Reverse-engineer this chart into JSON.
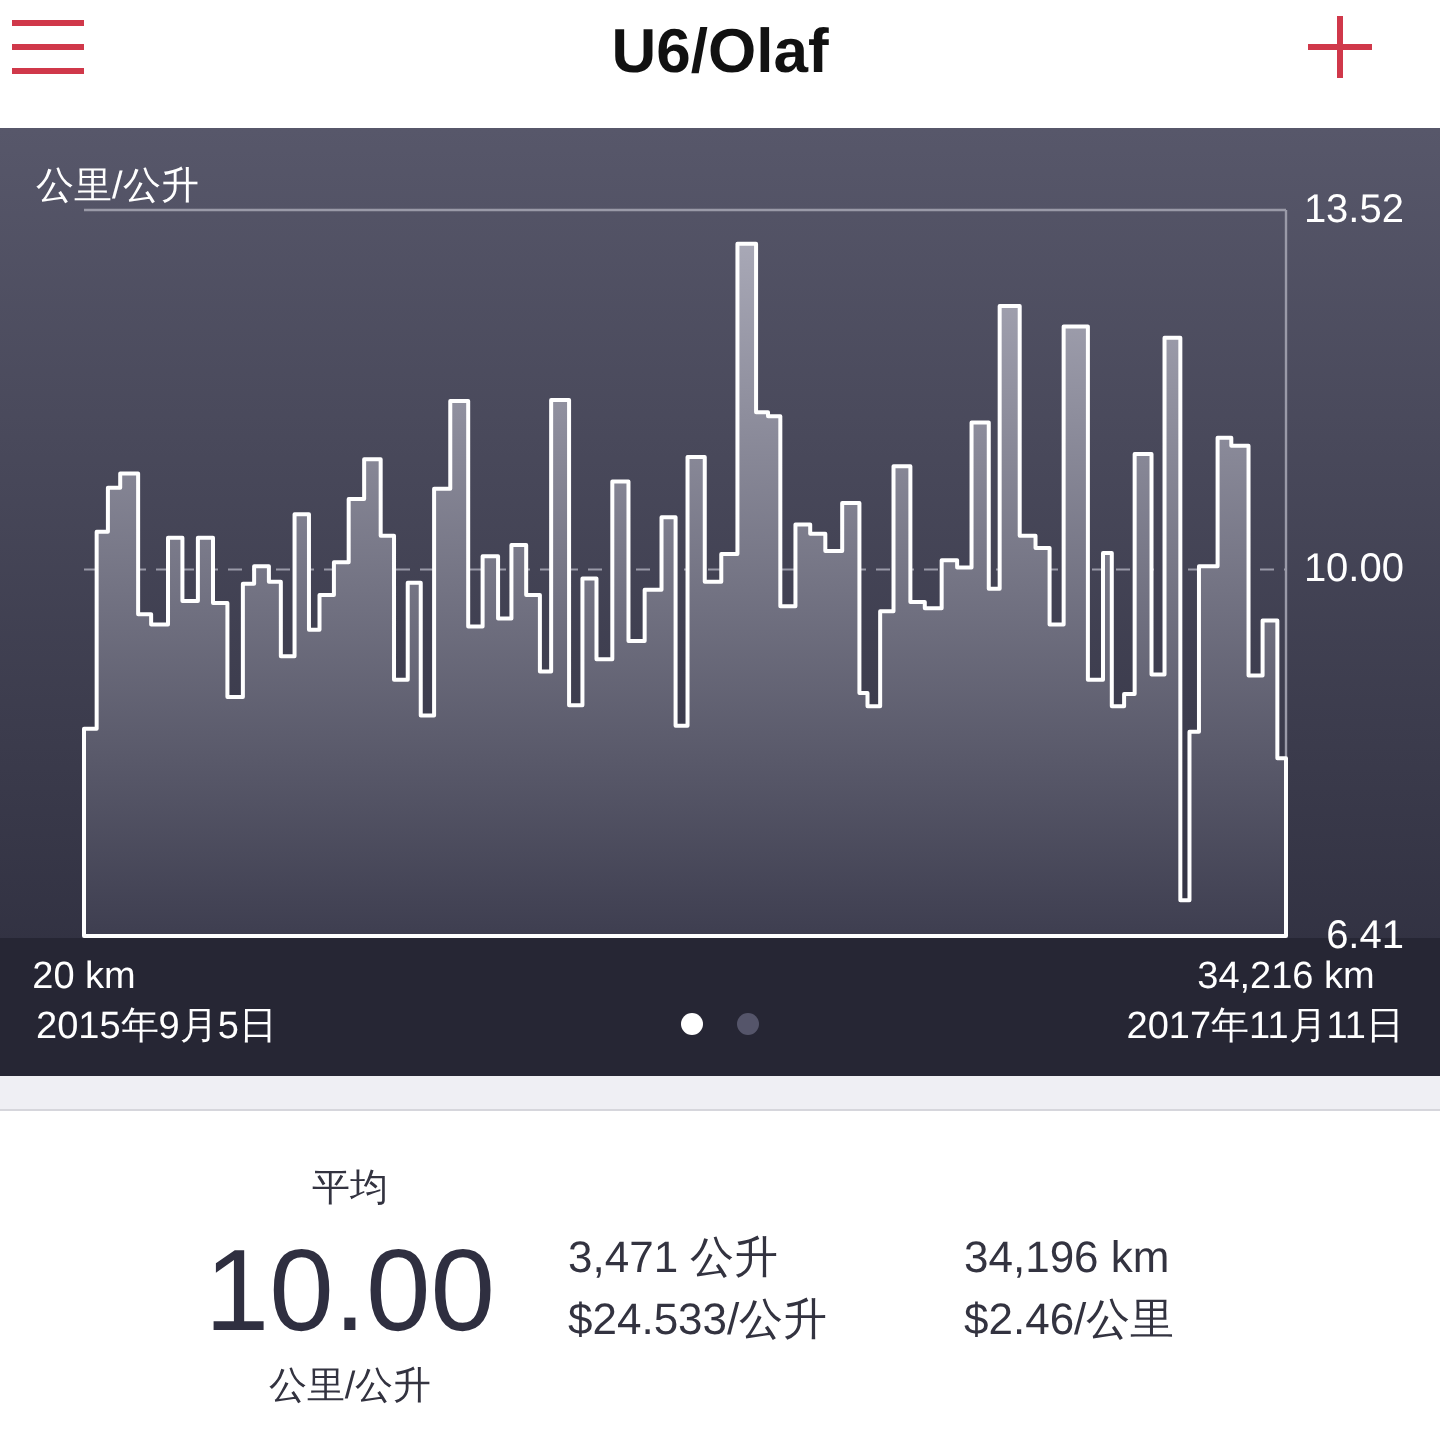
{
  "chart_data": {
    "type": "area",
    "title": "U6/Olaf",
    "ylabel": "公里/公升",
    "color": "#ffffff",
    "x": [
      20,
      380,
      700,
      1050,
      1560,
      1930,
      2410,
      2820,
      3260,
      3690,
      4100,
      4540,
      4860,
      5280,
      5620,
      6010,
      6420,
      6720,
      7130,
      7550,
      7990,
      8460,
      8840,
      9230,
      9600,
      9980,
      10440,
      10950,
      11360,
      11800,
      12180,
      12600,
      12990,
      13310,
      13820,
      14200,
      14600,
      15050,
      15510,
      15970,
      16450,
      16850,
      17190,
      17680,
      18150,
      18610,
      19140,
      19480,
      19830,
      20260,
      20680,
      21110,
      21590,
      22080,
      22310,
      22670,
      23050,
      23530,
      23940,
      24420,
      24860,
      25270,
      25760,
      26070,
      26640,
      27090,
      27490,
      27890,
      28580,
      29010,
      29260,
      29610,
      29910,
      30390,
      30760,
      31210,
      31470,
      31740,
      32270,
      32660,
      33150,
      33550,
      33970,
      34216
    ],
    "values": [
      8.44,
      10.37,
      10.8,
      10.94,
      9.56,
      9.46,
      10.31,
      9.69,
      10.31,
      9.67,
      8.75,
      9.86,
      10.03,
      9.88,
      9.15,
      10.54,
      9.41,
      9.75,
      10.07,
      10.69,
      11.08,
      10.33,
      8.92,
      9.87,
      8.57,
      10.79,
      11.65,
      9.44,
      10.13,
      9.52,
      10.24,
      9.75,
      9.0,
      11.66,
      8.67,
      9.91,
      9.12,
      10.86,
      9.3,
      9.8,
      10.51,
      8.47,
      11.1,
      9.88,
      10.15,
      13.19,
      11.54,
      11.5,
      9.64,
      10.44,
      10.35,
      10.18,
      10.65,
      8.79,
      8.66,
      9.59,
      11.01,
      9.68,
      9.62,
      10.09,
      10.02,
      11.44,
      9.81,
      12.58,
      10.33,
      10.21,
      9.46,
      12.38,
      8.92,
      10.16,
      8.66,
      8.78,
      11.13,
      8.97,
      12.27,
      6.76,
      8.41,
      10.03,
      11.29,
      11.21,
      8.96,
      9.5,
      8.15,
      8.15
    ],
    "xlim": [
      20,
      34216
    ],
    "xticks": [
      {
        "value": 20,
        "label": "20 km"
      },
      {
        "value": 34216,
        "label": "34,216 km"
      }
    ],
    "ylim": [
      6.41,
      13.52
    ],
    "yticks": [
      6.41,
      {
        "value": 10,
        "label": "10.00"
      },
      13.52
    ],
    "grid": "y",
    "annotations": [
      "2015年9月5日",
      "2017年11月11日",
      "平均",
      "10.00",
      "公里/公升",
      "3,471 公升",
      "$24.533/公升",
      "34,196 km",
      "$2.46/公里"
    ]
  }
}
